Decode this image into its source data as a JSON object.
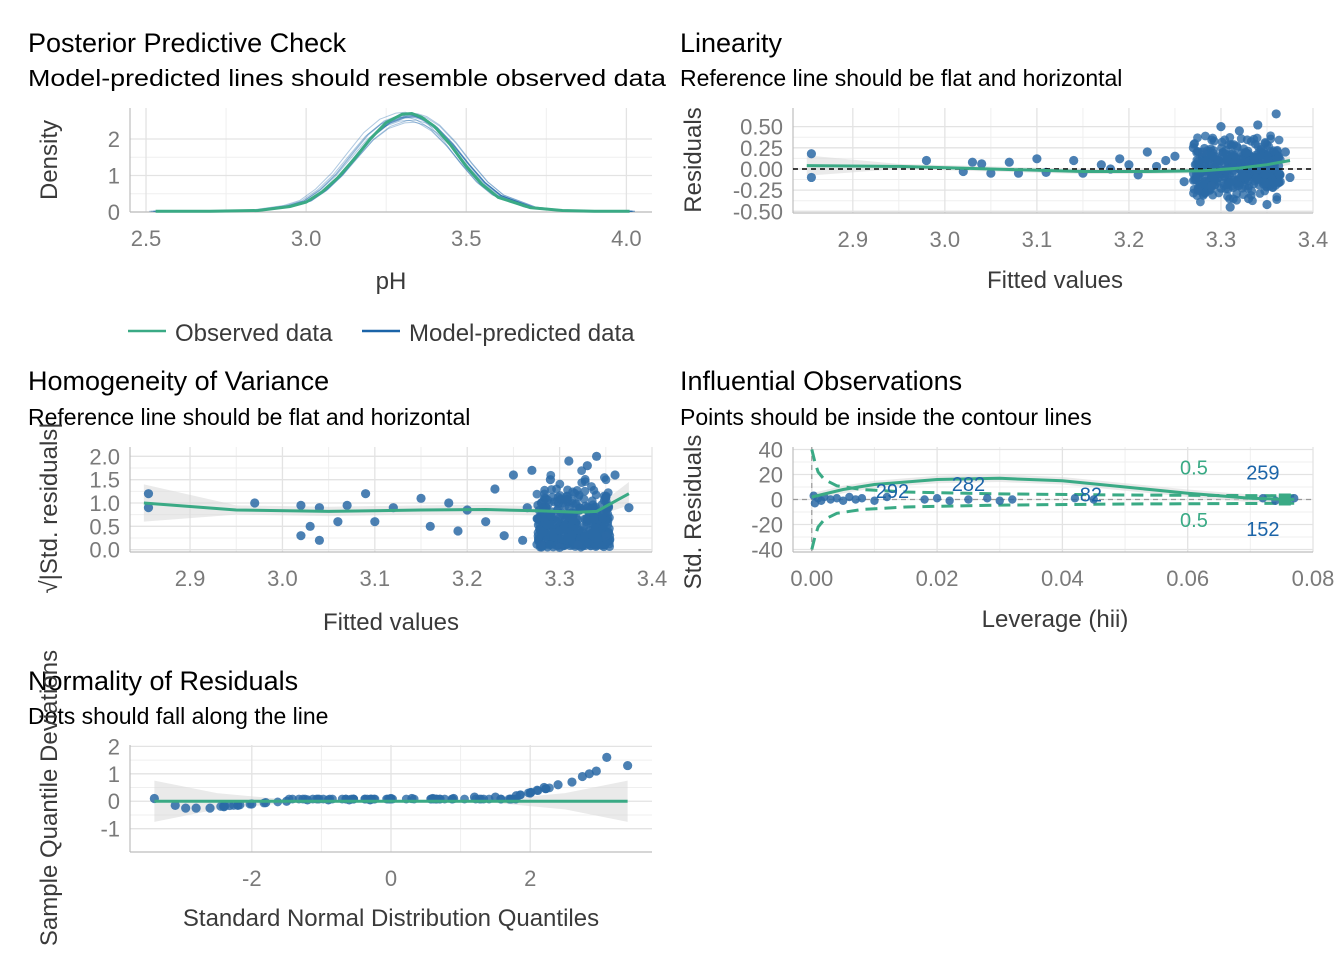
{
  "colors": {
    "observed": "#3aaa85",
    "predicted": "#1b64a8",
    "points": "#2b6aa6",
    "band": "#bfbfbf",
    "grid": "#e3e3e3",
    "text": "#000000",
    "tick": "#7a7a7a",
    "axis_title": "#3a3a3a"
  },
  "legend": {
    "observed": "Observed data",
    "predicted": "Model-predicted data"
  },
  "chart_data": [
    {
      "id": "ppc",
      "type": "line",
      "title": "Posterior Predictive Check",
      "subtitle": "Model-predicted lines should resemble observed data",
      "xlabel": "pH",
      "ylabel": "Density",
      "xlim": [
        2.45,
        4.08
      ],
      "ylim": [
        0,
        2.85
      ],
      "xticks": [
        2.5,
        3.0,
        3.5,
        4.0
      ],
      "xtick_labels": [
        "2.5",
        "3.0",
        "3.5",
        "4.0"
      ],
      "yticks": [
        0,
        1,
        2
      ],
      "ytick_labels": [
        "0",
        "1",
        "2"
      ],
      "legend_position": "bottom",
      "observed": {
        "x": [
          2.53,
          2.7,
          2.85,
          2.95,
          3.0,
          3.05,
          3.1,
          3.15,
          3.2,
          3.25,
          3.3,
          3.33,
          3.36,
          3.4,
          3.45,
          3.5,
          3.55,
          3.6,
          3.7,
          3.8,
          3.9,
          4.01
        ],
        "y": [
          0.02,
          0.02,
          0.04,
          0.15,
          0.27,
          0.55,
          0.95,
          1.45,
          2.0,
          2.45,
          2.68,
          2.7,
          2.6,
          2.35,
          1.85,
          1.25,
          0.75,
          0.4,
          0.12,
          0.04,
          0.02,
          0.02
        ]
      },
      "predicted_center": {
        "x": [
          2.53,
          2.7,
          2.85,
          2.95,
          3.0,
          3.05,
          3.1,
          3.15,
          3.2,
          3.25,
          3.3,
          3.33,
          3.36,
          3.4,
          3.45,
          3.5,
          3.55,
          3.6,
          3.7,
          3.8,
          3.9,
          4.01
        ],
        "y": [
          0.02,
          0.02,
          0.05,
          0.17,
          0.3,
          0.6,
          1.02,
          1.55,
          2.07,
          2.42,
          2.58,
          2.6,
          2.52,
          2.3,
          1.85,
          1.3,
          0.8,
          0.45,
          0.13,
          0.04,
          0.02,
          0.02
        ]
      }
    },
    {
      "id": "linearity",
      "type": "scatter",
      "title": "Linearity",
      "subtitle": "Reference line should be flat and horizontal",
      "xlabel": "Fitted values",
      "ylabel": "Residuals",
      "xlim": [
        2.835,
        3.4
      ],
      "ylim": [
        -0.52,
        0.72
      ],
      "xticks": [
        2.9,
        3.0,
        3.1,
        3.2,
        3.3,
        3.4
      ],
      "xtick_labels": [
        "2.9",
        "3.0",
        "3.1",
        "3.2",
        "3.3",
        "3.4"
      ],
      "yticks": [
        -0.5,
        -0.25,
        0,
        0.25,
        0.5
      ],
      "ytick_labels": [
        "-0.50",
        "-0.25",
        "0.00",
        "0.25",
        "0.50"
      ],
      "reference_y": 0,
      "fit": {
        "x": [
          2.85,
          2.95,
          3.05,
          3.15,
          3.22,
          3.28,
          3.32,
          3.35,
          3.375
        ],
        "y": [
          0.04,
          0.03,
          0.0,
          -0.03,
          -0.03,
          -0.02,
          0.01,
          0.05,
          0.1
        ]
      },
      "points": {
        "x": [
          2.855,
          2.855,
          2.98,
          3.02,
          3.03,
          3.04,
          3.05,
          3.07,
          3.08,
          3.1,
          3.11,
          3.14,
          3.15,
          3.17,
          3.18,
          3.19,
          3.2,
          3.21,
          3.22,
          3.23,
          3.24,
          3.25,
          3.26,
          3.27,
          3.275,
          3.28,
          3.29,
          3.3,
          3.31,
          3.32,
          3.33,
          3.34,
          3.35,
          3.36,
          3.37,
          3.375
        ],
        "y": [
          0.18,
          -0.1,
          0.1,
          -0.03,
          0.08,
          0.06,
          -0.05,
          0.08,
          -0.05,
          0.12,
          -0.04,
          0.1,
          -0.05,
          0.05,
          0.0,
          0.12,
          0.05,
          -0.07,
          0.2,
          0.03,
          0.1,
          0.15,
          -0.15,
          0.25,
          -0.25,
          0.2,
          -0.2,
          0.5,
          -0.45,
          0.45,
          -0.35,
          0.52,
          -0.42,
          0.65,
          0.2,
          -0.1
        ]
      },
      "cloud": {
        "x0": 3.27,
        "x1": 3.365,
        "y0": -0.45,
        "y1": 0.45
      }
    },
    {
      "id": "homogeneity",
      "type": "scatter",
      "title": "Homogeneity of Variance",
      "subtitle": "Reference line should be flat and horizontal",
      "xlabel": "Fitted values",
      "ylabel": "√|Std. residuals|",
      "xlim": [
        2.835,
        3.4
      ],
      "ylim": [
        -0.05,
        2.2
      ],
      "xticks": [
        2.9,
        3.0,
        3.1,
        3.2,
        3.3,
        3.4
      ],
      "xtick_labels": [
        "2.9",
        "3.0",
        "3.1",
        "3.2",
        "3.3",
        "3.4"
      ],
      "yticks": [
        0,
        0.5,
        1,
        1.5,
        2
      ],
      "ytick_labels": [
        "0.0",
        "0.5",
        "1.0",
        "1.5",
        "2.0"
      ],
      "fit": {
        "x": [
          2.85,
          2.95,
          3.05,
          3.15,
          3.22,
          3.28,
          3.32,
          3.34,
          3.375
        ],
        "y": [
          1.0,
          0.85,
          0.82,
          0.85,
          0.86,
          0.83,
          0.8,
          0.82,
          1.2
        ]
      },
      "points": {
        "x": [
          2.855,
          2.855,
          2.97,
          3.02,
          3.02,
          3.03,
          3.04,
          3.04,
          3.06,
          3.07,
          3.09,
          3.1,
          3.12,
          3.15,
          3.16,
          3.18,
          3.19,
          3.2,
          3.22,
          3.23,
          3.24,
          3.25,
          3.26,
          3.265,
          3.27,
          3.28,
          3.29,
          3.3,
          3.31,
          3.32,
          3.33,
          3.34,
          3.35,
          3.36,
          3.375
        ],
        "y": [
          1.2,
          0.9,
          1.0,
          0.3,
          0.95,
          0.5,
          0.2,
          0.9,
          0.6,
          0.95,
          1.2,
          0.6,
          0.9,
          1.1,
          0.5,
          1.0,
          0.4,
          0.85,
          0.6,
          1.3,
          0.3,
          1.6,
          0.2,
          0.9,
          1.7,
          0.1,
          1.5,
          0.05,
          1.9,
          0.1,
          1.8,
          2.0,
          0.3,
          1.6,
          0.9
        ]
      },
      "cloud": {
        "x0": 3.275,
        "x1": 3.355,
        "y0": 0.05,
        "y1": 1.85
      }
    },
    {
      "id": "influence",
      "type": "scatter",
      "title": "Influential Observations",
      "subtitle": "Points should be inside the contour lines",
      "xlabel": "Leverage (hii)",
      "ylabel": "Std. Residuals",
      "xlim": [
        -0.003,
        0.08
      ],
      "ylim": [
        -42,
        42
      ],
      "xticks": [
        0.0,
        0.02,
        0.04,
        0.06,
        0.08
      ],
      "xtick_labels": [
        "0.00",
        "0.02",
        "0.04",
        "0.06",
        "0.08"
      ],
      "yticks": [
        -40,
        -20,
        0,
        20,
        40
      ],
      "ytick_labels": [
        "-40",
        "-20",
        "0",
        "20",
        "40"
      ],
      "fit": {
        "x": [
          0.0,
          0.005,
          0.01,
          0.02,
          0.03,
          0.04,
          0.05,
          0.06,
          0.07,
          0.077
        ],
        "y": [
          2,
          8,
          12,
          16,
          17,
          15,
          10,
          5,
          1,
          0
        ]
      },
      "contour_upper": {
        "x": [
          0.0,
          0.0005,
          0.001,
          0.002,
          0.004,
          0.008,
          0.015,
          0.03,
          0.05,
          0.077
        ],
        "y": [
          40,
          30,
          22,
          16,
          11,
          8,
          6,
          4.5,
          3.6,
          3.0
        ]
      },
      "contour_lower": {
        "x": [
          0.0,
          0.0005,
          0.001,
          0.002,
          0.004,
          0.008,
          0.015,
          0.03,
          0.05,
          0.077
        ],
        "y": [
          -40,
          -30,
          -22,
          -16,
          -11,
          -8,
          -6,
          -4.5,
          -3.6,
          -3.0
        ]
      },
      "contour_label": "0.5",
      "labeled_points": [
        {
          "label": "292",
          "x": 0.01,
          "y": 2
        },
        {
          "label": "282",
          "x": 0.025,
          "y": -2
        },
        {
          "label": "82",
          "x": 0.042,
          "y": 1
        },
        {
          "label": "259",
          "x": 0.072,
          "y": 1
        },
        {
          "label": "152",
          "x": 0.072,
          "y": -1
        }
      ],
      "points": {
        "x": [
          0.0003,
          0.0005,
          0.001,
          0.0015,
          0.002,
          0.003,
          0.004,
          0.005,
          0.006,
          0.007,
          0.008,
          0.01,
          0.012,
          0.018,
          0.02,
          0.022,
          0.025,
          0.028,
          0.03,
          0.032,
          0.042,
          0.045,
          0.072,
          0.074,
          0.076,
          0.077
        ],
        "y": [
          3,
          -3,
          1,
          -1,
          2,
          0,
          1,
          -1,
          2,
          0,
          1,
          -1,
          2,
          0,
          1,
          -1,
          0,
          1,
          -1,
          0,
          1,
          0,
          1,
          -1,
          0,
          1
        ]
      }
    },
    {
      "id": "normality",
      "type": "scatter",
      "title": "Normality of Residuals",
      "subtitle": "Dots should fall along the line",
      "xlabel": "Standard Normal Distribution Quantiles",
      "ylabel": "Sample Quantile Deviations",
      "xlim": [
        -3.75,
        3.75
      ],
      "ylim": [
        -1.85,
        2.05
      ],
      "xticks": [
        -2,
        0,
        2
      ],
      "xtick_labels": [
        "-2",
        "0",
        "2"
      ],
      "yticks": [
        -1,
        0,
        1,
        2
      ],
      "ytick_labels": [
        "-1",
        "0",
        "1",
        "2"
      ],
      "fit": {
        "x": [
          -3.4,
          3.4
        ],
        "y": [
          0.0,
          0.0
        ]
      },
      "points": {
        "x": [
          -3.4,
          -3.1,
          -2.95,
          -2.8,
          -2.6,
          -2.4,
          -2.2,
          -2.0,
          -1.8,
          -1.5,
          -1.2,
          -0.9,
          -0.6,
          -0.3,
          0.0,
          0.3,
          0.6,
          0.9,
          1.2,
          1.5,
          1.8,
          2.0,
          2.1,
          2.2,
          2.4,
          2.6,
          2.75,
          2.85,
          2.95,
          3.1,
          3.4
        ],
        "y": [
          0.1,
          -0.15,
          -0.25,
          -0.25,
          -0.25,
          -0.2,
          -0.15,
          -0.1,
          -0.05,
          0.0,
          0.05,
          0.05,
          0.05,
          0.05,
          0.1,
          0.1,
          0.1,
          0.1,
          0.15,
          0.15,
          0.2,
          0.3,
          0.4,
          0.5,
          0.6,
          0.7,
          0.9,
          1.0,
          1.1,
          1.6,
          1.3
        ]
      }
    }
  ]
}
